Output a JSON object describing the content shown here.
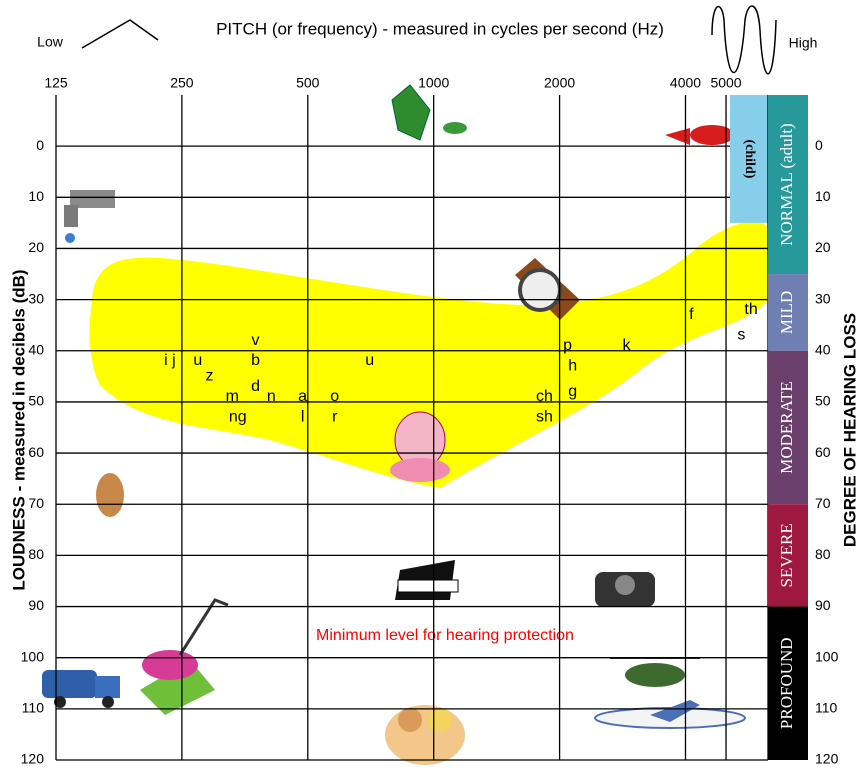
{
  "chart_data": {
    "type": "audiogram",
    "title": "PITCH (or frequency) - measured in cycles per second (Hz)",
    "low_label": "Low",
    "high_label": "High",
    "y_label": "LOUDNESS - measured in decibels (dB)",
    "y2_label": "DEGREE OF HEARING LOSS",
    "xscale": "log",
    "xlim": [
      125,
      6300
    ],
    "xticks": [
      125,
      250,
      500,
      1000,
      2000,
      4000,
      5000
    ],
    "ylim": [
      -10,
      120
    ],
    "yticks": [
      0,
      10,
      20,
      30,
      40,
      50,
      60,
      70,
      80,
      90,
      100,
      110,
      120
    ],
    "y_inverted": true,
    "grid": true,
    "banana_color": "#ffff00",
    "annotation": {
      "text": "Minimum level for hearing protection",
      "color": "#ff0000"
    },
    "sounds": [
      {
        "label": "i j",
        "x": 234,
        "y": 42
      },
      {
        "label": "u",
        "x": 273,
        "y": 42
      },
      {
        "label": "z",
        "x": 291,
        "y": 45
      },
      {
        "label": "v",
        "x": 375,
        "y": 38
      },
      {
        "label": "b",
        "x": 375,
        "y": 42
      },
      {
        "label": "d",
        "x": 375,
        "y": 47
      },
      {
        "label": "m",
        "x": 330,
        "y": 49
      },
      {
        "label": "n",
        "x": 409,
        "y": 49
      },
      {
        "label": "ng",
        "x": 340,
        "y": 53
      },
      {
        "label": "a",
        "x": 486,
        "y": 49
      },
      {
        "label": "l",
        "x": 486,
        "y": 53
      },
      {
        "label": "o",
        "x": 580,
        "y": 49
      },
      {
        "label": "r",
        "x": 580,
        "y": 53
      },
      {
        "label": "u",
        "x": 703,
        "y": 42
      },
      {
        "label": "ch",
        "x": 1840,
        "y": 49
      },
      {
        "label": "sh",
        "x": 1840,
        "y": 53
      },
      {
        "label": "p",
        "x": 2090,
        "y": 39
      },
      {
        "label": "h",
        "x": 2150,
        "y": 43
      },
      {
        "label": "g",
        "x": 2150,
        "y": 48
      },
      {
        "label": "k",
        "x": 2890,
        "y": 39
      },
      {
        "label": "f",
        "x": 4130,
        "y": 33
      },
      {
        "label": "th",
        "x": 5740,
        "y": 32
      },
      {
        "label": "s",
        "x": 5440,
        "y": 37
      }
    ],
    "child_band": {
      "label": "(child)",
      "from": -10,
      "to": 15,
      "color": "#87ceeb"
    },
    "degrees": [
      {
        "label": "NORMAL (adult)",
        "from": -10,
        "to": 25,
        "color": "#27999a"
      },
      {
        "label": "MILD",
        "from": 25,
        "to": 40,
        "color": "#6f7fb1"
      },
      {
        "label": "MODERATE",
        "from": 40,
        "to": 70,
        "color": "#6a3f6c"
      },
      {
        "label": "SEVERE",
        "from": 70,
        "to": 90,
        "color": "#9f1840"
      },
      {
        "label": "PROFOUND",
        "from": 90,
        "to": 120,
        "color": "#000000"
      }
    ]
  }
}
